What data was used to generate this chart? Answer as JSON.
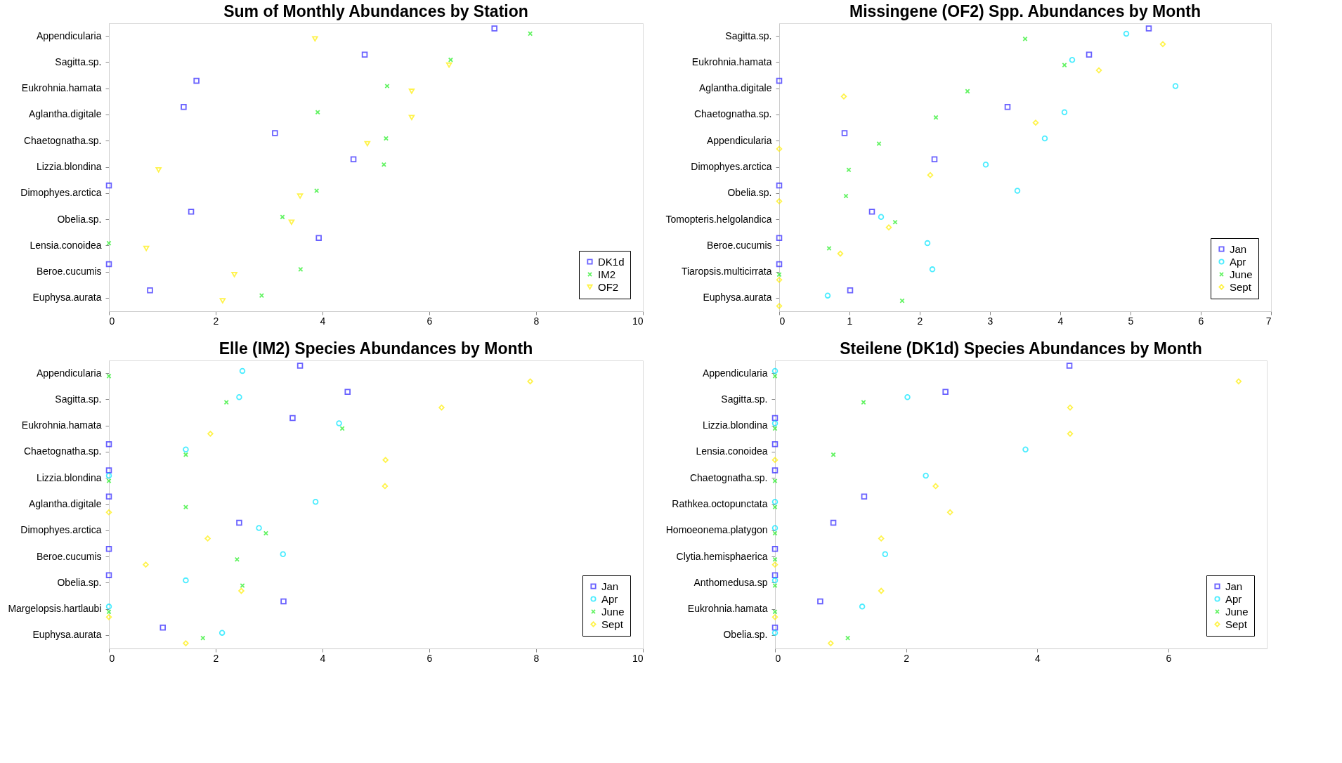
{
  "chart_data": [
    {
      "type": "scatter",
      "orientation": "horizontal",
      "title": "Sum of Monthly Abundances by Station",
      "legend": "bottom right",
      "grid": false,
      "categories": [
        "Appendicularia",
        "Sagitta.sp.",
        "Eukrohnia.hamata",
        "Aglantha.digitale",
        "Chaetognatha.sp.",
        "Lizzia.blondina",
        "Dimophyes.arctica",
        "Obelia.sp.",
        "Lensia.conoidea",
        "Beroe.cucumis",
        "Euphysa.aurata"
      ],
      "xlim": [
        0,
        10
      ],
      "xticks": [
        0,
        2,
        4,
        6,
        8,
        10
      ],
      "series": [
        {
          "name": "DK1d",
          "color": "#2a1fff",
          "marker": "square",
          "values": [
            7.22,
            4.79,
            1.64,
            1.4,
            3.11,
            4.58,
            0,
            1.54,
            3.93,
            0,
            0.77
          ]
        },
        {
          "name": "IM2",
          "color": "#22ee22",
          "marker": "cross",
          "values": [
            7.89,
            6.4,
            5.21,
            3.91,
            5.19,
            5.15,
            3.89,
            3.25,
            0,
            3.59,
            2.86
          ]
        },
        {
          "name": "OF2",
          "color": "#ffee00",
          "marker": "triangle",
          "values": [
            3.86,
            6.37,
            5.67,
            5.67,
            4.84,
            0.93,
            3.58,
            3.42,
            0.7,
            2.35,
            2.13
          ]
        }
      ]
    },
    {
      "type": "scatter",
      "orientation": "horizontal",
      "title": "Missingene (OF2) Spp. Abundances by Month",
      "legend": "bottom right",
      "grid": false,
      "categories": [
        "Sagitta.sp.",
        "Eukrohnia.hamata",
        "Aglantha.digitale",
        "Chaetognatha.sp.",
        "Appendicularia",
        "Dimophyes.arctica",
        "Obelia.sp.",
        "Tomopteris.helgolandica",
        "Beroe.cucumis",
        "Tiaropsis.multicirrata",
        "Euphysa.aurata"
      ],
      "xlim": [
        0,
        7
      ],
      "xticks": [
        0,
        1,
        2,
        3,
        4,
        5,
        6,
        7
      ],
      "series": [
        {
          "name": "Jan",
          "color": "#2a1fff",
          "marker": "square",
          "values": [
            5.26,
            4.41,
            0,
            3.25,
            0.93,
            2.21,
            0,
            1.32,
            0,
            0,
            1.01
          ]
        },
        {
          "name": "Apr",
          "color": "#00e5ff",
          "marker": "circle",
          "values": [
            4.94,
            4.17,
            5.64,
            4.06,
            3.78,
            2.94,
            3.39,
            1.45,
            2.11,
            2.18,
            0.69
          ]
        },
        {
          "name": "June",
          "color": "#22ee22",
          "marker": "cross",
          "values": [
            3.5,
            4.06,
            2.68,
            2.23,
            1.42,
            0.99,
            0.95,
            1.65,
            0.71,
            0,
            1.75
          ]
        },
        {
          "name": "Sept",
          "color": "#ffee00",
          "marker": "diamond",
          "values": [
            5.46,
            4.55,
            0.92,
            3.65,
            0,
            2.15,
            0,
            1.56,
            0.87,
            0,
            0
          ]
        }
      ]
    },
    {
      "type": "scatter",
      "orientation": "horizontal",
      "title": "Elle (IM2) Species Abundances by Month",
      "legend": "bottom right",
      "grid": false,
      "categories": [
        "Appendicularia",
        "Sagitta.sp.",
        "Eukrohnia.hamata",
        "Chaetognatha.sp.",
        "Lizzia.blondina",
        "Aglantha.digitale",
        "Dimophyes.arctica",
        "Beroe.cucumis",
        "Obelia.sp.",
        "Margelopsis.hartlaubi",
        "Euphysa.aurata"
      ],
      "xlim": [
        0,
        10
      ],
      "xticks": [
        0,
        2,
        4,
        6,
        8,
        10
      ],
      "series": [
        {
          "name": "Jan",
          "color": "#2a1fff",
          "marker": "square",
          "values": [
            3.58,
            4.47,
            3.44,
            0,
            0,
            0,
            2.44,
            0,
            0,
            3.27,
            1.01
          ]
        },
        {
          "name": "Apr",
          "color": "#00e5ff",
          "marker": "circle",
          "values": [
            2.5,
            2.44,
            4.31,
            1.44,
            0,
            3.87,
            2.81,
            3.26,
            1.44,
            0,
            2.12
          ]
        },
        {
          "name": "June",
          "color": "#22ee22",
          "marker": "cross",
          "values": [
            0,
            2.2,
            4.37,
            1.44,
            0,
            1.44,
            2.94,
            2.4,
            2.5,
            0,
            1.76
          ]
        },
        {
          "name": "Sept",
          "color": "#ffee00",
          "marker": "diamond",
          "values": [
            7.89,
            6.23,
            1.9,
            5.18,
            5.17,
            0,
            1.85,
            0.69,
            2.48,
            0,
            1.44
          ]
        }
      ]
    },
    {
      "type": "scatter",
      "orientation": "horizontal",
      "title": "Steilene (DK1d) Species Abundances by Month",
      "legend": "bottom right",
      "grid": false,
      "categories": [
        "Appendicularia",
        "Sagitta.sp.",
        "Lizzia.blondina",
        "Lensia.conoidea",
        "Chaetognatha.sp.",
        "Rathkea.octopunctata",
        "Homoeonema.platygon",
        "Clytia.hemisphaerica",
        "Anthomedusa.sp",
        "Eukrohnia.hamata",
        "Obelia.sp."
      ],
      "xlim": [
        0,
        7.5
      ],
      "xticks": [
        0,
        2,
        4,
        6
      ],
      "series": [
        {
          "name": "Jan",
          "color": "#2a1fff",
          "marker": "square",
          "values": [
            4.49,
            2.6,
            0,
            0,
            0,
            1.36,
            0.89,
            0,
            0,
            0.69,
            0
          ]
        },
        {
          "name": "Apr",
          "color": "#00e5ff",
          "marker": "circle",
          "values": [
            0,
            2.02,
            0,
            3.82,
            2.3,
            0,
            0,
            1.68,
            0,
            1.33,
            0
          ]
        },
        {
          "name": "June",
          "color": "#22ee22",
          "marker": "cross",
          "values": [
            0,
            1.35,
            0,
            0.89,
            0,
            0,
            0,
            0,
            0,
            0,
            1.11
          ]
        },
        {
          "name": "Sept",
          "color": "#ffee00",
          "marker": "diamond",
          "values": [
            7.07,
            4.5,
            4.5,
            0,
            2.45,
            2.67,
            1.62,
            0,
            1.62,
            0,
            0.85
          ]
        }
      ]
    }
  ]
}
